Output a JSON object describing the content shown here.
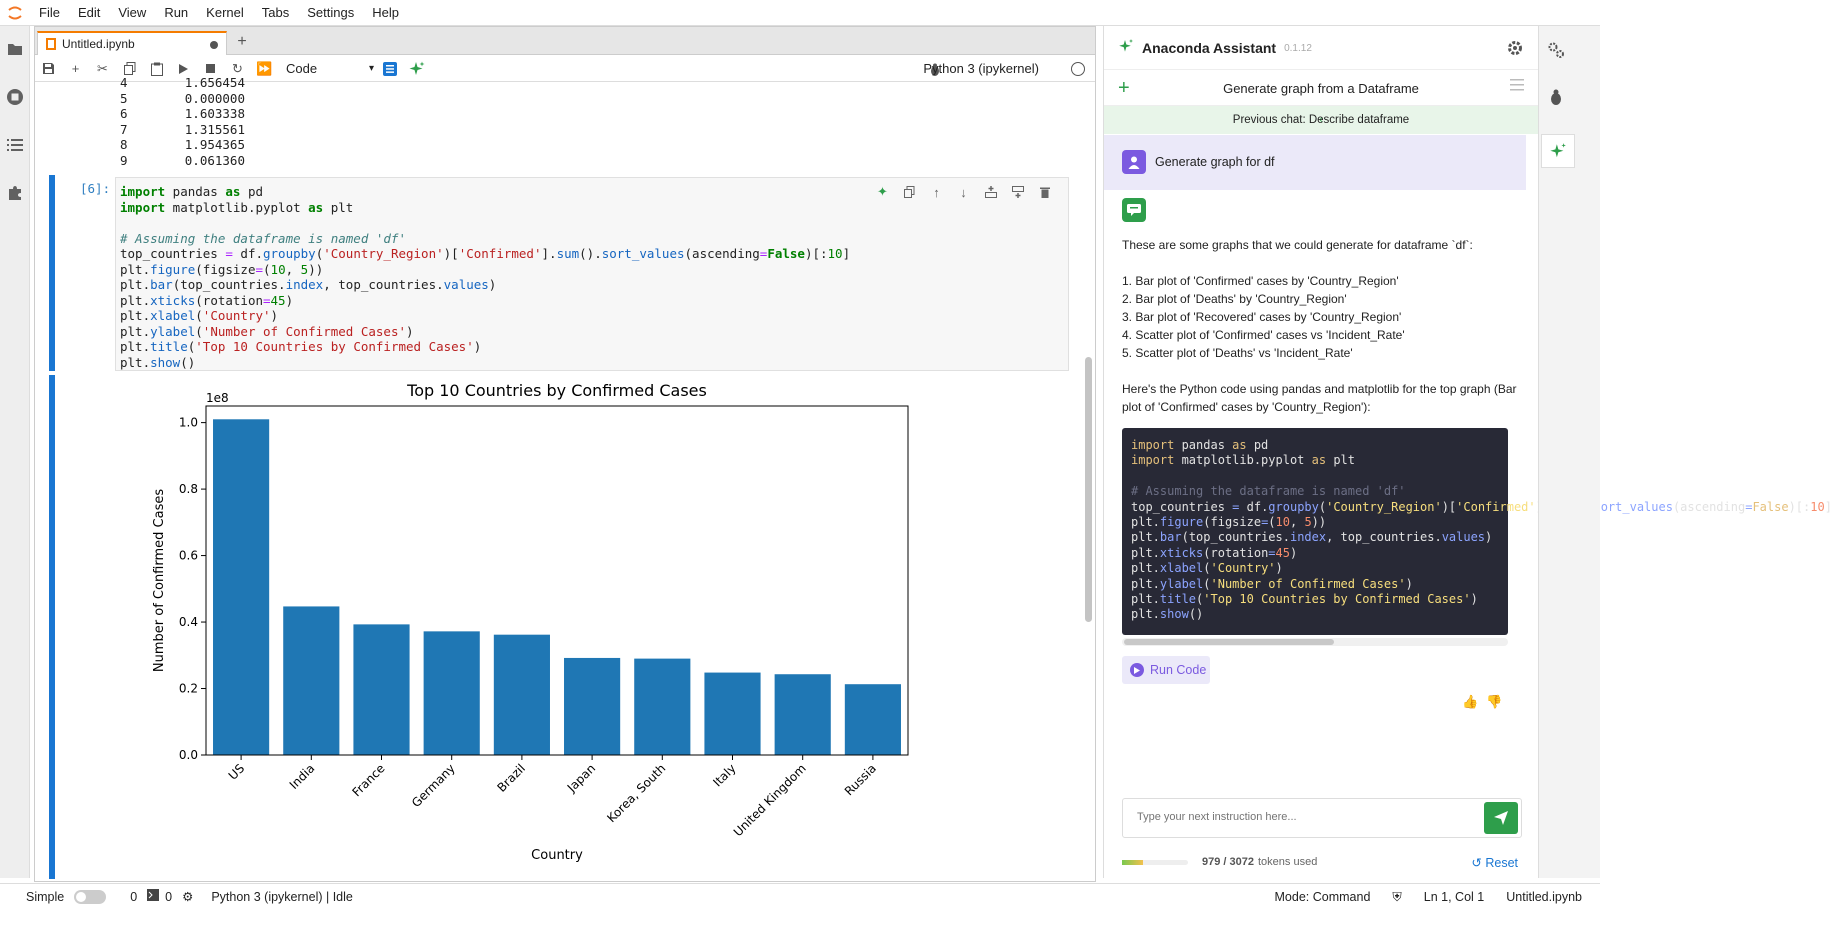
{
  "menu": [
    "File",
    "Edit",
    "View",
    "Run",
    "Kernel",
    "Tabs",
    "Settings",
    "Help"
  ],
  "tab": {
    "title": "Untitled.ipynb"
  },
  "toolbar": {
    "cell_type": "Code",
    "kernel": "Python 3 (ipykernel)"
  },
  "output_rows": [
    {
      "idx": "4",
      "val": "1.656454"
    },
    {
      "idx": "5",
      "val": "0.000000"
    },
    {
      "idx": "6",
      "val": "1.603338"
    },
    {
      "idx": "7",
      "val": "1.315561"
    },
    {
      "idx": "8",
      "val": "1.954365"
    },
    {
      "idx": "9",
      "val": "0.061360"
    }
  ],
  "cell": {
    "prompt": "[6]:",
    "lines": [
      "import pandas as pd",
      "import matplotlib.pyplot as plt",
      "",
      "# Assuming the dataframe is named 'df'",
      "top_countries = df.groupby('Country_Region')['Confirmed'].sum().sort_values(ascending=False)[:10]",
      "plt.figure(figsize=(10, 5))",
      "plt.bar(top_countries.index, top_countries.values)",
      "plt.xticks(rotation=45)",
      "plt.xlabel('Country')",
      "plt.ylabel('Number of Confirmed Cases')",
      "plt.title('Top 10 Countries by Confirmed Cases')",
      "plt.show()"
    ]
  },
  "chart_data": {
    "type": "bar",
    "title": "Top 10 Countries by Confirmed Cases",
    "xlabel": "Country",
    "ylabel": "Number of Confirmed Cases",
    "offset_label": "1e8",
    "categories": [
      "US",
      "India",
      "France",
      "Germany",
      "Brazil",
      "Japan",
      "Korea, South",
      "Italy",
      "United Kingdom",
      "Russia"
    ],
    "values": [
      1.01,
      0.447,
      0.393,
      0.372,
      0.362,
      0.292,
      0.29,
      0.248,
      0.243,
      0.213
    ],
    "ylim": [
      0,
      1.05
    ],
    "yticks": [
      "0.0",
      "0.2",
      "0.4",
      "0.6",
      "0.8",
      "1.0"
    ],
    "bar_color": "#1f77b4",
    "grid": false
  },
  "assistant": {
    "title": "Anaconda Assistant",
    "version": "0.1.12",
    "chat_title": "Generate graph from a Dataframe",
    "previous_chat": "Previous chat: Describe dataframe",
    "user_message": "Generate graph for df",
    "intro": "These are some graphs that we could generate for dataframe `df`:",
    "suggestions": [
      "1. Bar plot of 'Confirmed' cases by 'Country_Region'",
      "2. Bar plot of 'Deaths' by 'Country_Region'",
      "3. Bar plot of 'Recovered' cases by 'Country_Region'",
      "4. Scatter plot of 'Confirmed' cases vs 'Incident_Rate'",
      "5. Scatter plot of 'Deaths' vs 'Incident_Rate'"
    ],
    "code_intro": "Here's the Python code using pandas and matplotlib for the top graph (Bar plot of 'Confirmed' cases by 'Country_Region'):",
    "run_code_label": "Run Code",
    "input_placeholder": "Type your next instruction here...",
    "tokens_used": "979 / 3072",
    "tokens_label": "tokens used",
    "tokens_fraction": 0.32,
    "reset_label": "Reset"
  },
  "status": {
    "mode_label": "Simple",
    "count_a": "0",
    "count_b": "0",
    "kernel_status": "Python 3 (ipykernel) | Idle",
    "mode": "Mode: Command",
    "position": "Ln 1, Col 1",
    "file": "Untitled.ipynb"
  },
  "colors": {
    "accent_blue": "#1976d2",
    "assistant_green": "#2e9e4b",
    "assistant_purple": "#7b5ae0"
  }
}
